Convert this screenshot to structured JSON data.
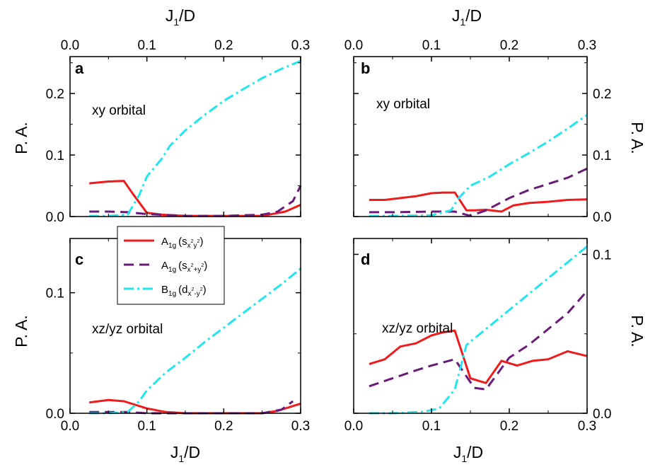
{
  "colors": {
    "a1g_sxy": "#ee1c1c",
    "a1g_sx2y2": "#6a1b78",
    "b1g_dx2y2": "#22e6ee",
    "axis": "#000000"
  },
  "shared": {
    "x_axis_title_main": "J",
    "x_axis_title_sub": "1",
    "x_axis_title_tail": "/D",
    "y_axis_title": "P. A."
  },
  "legend": {
    "items": [
      {
        "key": "a1g_sxy",
        "name": "A",
        "name_sub": "1g",
        "open": "(s",
        "func_sub": "x",
        "func_sup": "2",
        "func_sub2": "y",
        "func_sup2": "2",
        "close": ")"
      },
      {
        "key": "a1g_sx2y2",
        "name": "A",
        "name_sub": "1g",
        "open": "(s",
        "func_sub": "x",
        "func_sup": "2",
        "func_sub2": "+y",
        "func_sup2": "2",
        "close": ")"
      },
      {
        "key": "b1g_dx2y2",
        "name": "B",
        "name_sub": "1g",
        "open": "(d",
        "func_sub": "x",
        "func_sup": "2",
        "func_sub2": "-y",
        "func_sup2": "2",
        "close": ")"
      }
    ]
  },
  "chart_data": [
    {
      "panel": "a",
      "type": "line",
      "annotation": "xy orbital",
      "xlim": [
        0.0,
        0.3
      ],
      "ylim": [
        0.0,
        0.26
      ],
      "xticks": [
        "0.0",
        "0.1",
        "0.2",
        "0.3"
      ],
      "yticks": [
        {
          "value": 0.0,
          "label": "0.0"
        },
        {
          "value": 0.1,
          "label": "0.1"
        },
        {
          "value": 0.2,
          "label": "0.2"
        }
      ],
      "series": [
        {
          "key": "a1g_sxy",
          "name": "A1g (sxy)",
          "x": [
            0.025,
            0.05,
            0.07,
            0.08,
            0.1,
            0.12,
            0.15,
            0.2,
            0.25,
            0.28,
            0.3
          ],
          "y": [
            0.054,
            0.057,
            0.058,
            0.04,
            0.006,
            0.003,
            0.001,
            0.001,
            0.001,
            0.008,
            0.019
          ]
        },
        {
          "key": "a1g_sx2y2",
          "name": "A1g (sx2+y2)",
          "x": [
            0.025,
            0.05,
            0.075,
            0.1,
            0.15,
            0.2,
            0.25,
            0.27,
            0.29,
            0.3
          ],
          "y": [
            0.008,
            0.008,
            0.007,
            0.004,
            0.001,
            0.001,
            0.003,
            0.008,
            0.025,
            0.05
          ]
        },
        {
          "key": "b1g_dx2y2",
          "name": "B1g (dx2-y2)",
          "x": [
            0.025,
            0.05,
            0.075,
            0.09,
            0.1,
            0.12,
            0.13,
            0.15,
            0.175,
            0.2,
            0.225,
            0.25,
            0.275,
            0.3
          ],
          "y": [
            0.001,
            0.001,
            0.003,
            0.035,
            0.065,
            0.095,
            0.115,
            0.14,
            0.165,
            0.188,
            0.207,
            0.225,
            0.24,
            0.253
          ]
        }
      ]
    },
    {
      "panel": "b",
      "type": "line",
      "annotation": "xy orbital",
      "xlim": [
        0.0,
        0.3
      ],
      "ylim": [
        0.0,
        0.26
      ],
      "xticks": [
        "0.0",
        "0.1",
        "0.2",
        "0.3"
      ],
      "yticks": [
        {
          "value": 0.0,
          "label": "0.0"
        },
        {
          "value": 0.1,
          "label": "0.1"
        },
        {
          "value": 0.2,
          "label": "0.2"
        }
      ],
      "series": [
        {
          "key": "a1g_sxy",
          "name": "A1g (sxy)",
          "x": [
            0.02,
            0.04,
            0.06,
            0.08,
            0.1,
            0.115,
            0.13,
            0.145,
            0.155,
            0.17,
            0.19,
            0.205,
            0.225,
            0.25,
            0.275,
            0.3
          ],
          "y": [
            0.027,
            0.027,
            0.03,
            0.033,
            0.038,
            0.039,
            0.039,
            0.01,
            0.01,
            0.011,
            0.008,
            0.018,
            0.022,
            0.024,
            0.027,
            0.028
          ]
        },
        {
          "key": "a1g_sx2y2",
          "name": "A1g (sx2+y2)",
          "x": [
            0.02,
            0.05,
            0.1,
            0.13,
            0.15,
            0.17,
            0.2,
            0.225,
            0.25,
            0.275,
            0.3
          ],
          "y": [
            0.007,
            0.007,
            0.008,
            0.008,
            0.001,
            0.01,
            0.03,
            0.043,
            0.053,
            0.063,
            0.078
          ]
        },
        {
          "key": "b1g_dx2y2",
          "name": "B1g (dx2-y2)",
          "x": [
            0.02,
            0.05,
            0.1,
            0.125,
            0.135,
            0.15,
            0.175,
            0.2,
            0.225,
            0.25,
            0.275,
            0.3
          ],
          "y": [
            0.001,
            0.001,
            0.002,
            0.01,
            0.03,
            0.05,
            0.065,
            0.085,
            0.103,
            0.122,
            0.143,
            0.165
          ]
        }
      ]
    },
    {
      "panel": "c",
      "type": "line",
      "annotation": "xz/yz orbital",
      "xlim": [
        0.0,
        0.3
      ],
      "ylim": [
        0.0,
        0.145
      ],
      "xticks": [
        "0.0",
        "0.1",
        "0.2",
        "0.3"
      ],
      "yticks": [
        {
          "value": 0.0,
          "label": "0.0"
        },
        {
          "value": 0.1,
          "label": "0.1"
        }
      ],
      "series": [
        {
          "key": "a1g_sxy",
          "name": "A1g (sxy)",
          "x": [
            0.025,
            0.05,
            0.07,
            0.1,
            0.125,
            0.15,
            0.2,
            0.25,
            0.27,
            0.3
          ],
          "y": [
            0.009,
            0.011,
            0.01,
            0.004,
            0.001,
            0.0,
            0.0,
            0.0,
            0.002,
            0.008
          ]
        },
        {
          "key": "a1g_sx2y2",
          "name": "A1g (sx2+y2)",
          "x": [
            0.025,
            0.05,
            0.075,
            0.1,
            0.15,
            0.2,
            0.25,
            0.275,
            0.29
          ],
          "y": [
            0.001,
            0.001,
            0.001,
            0.0,
            0.0,
            0.0,
            0.0,
            0.003,
            0.01
          ]
        },
        {
          "key": "b1g_dx2y2",
          "name": "B1g (dx2-y2)",
          "x": [
            0.025,
            0.05,
            0.075,
            0.09,
            0.1,
            0.125,
            0.15,
            0.175,
            0.2,
            0.225,
            0.25,
            0.275,
            0.3
          ],
          "y": [
            0.0,
            0.0,
            0.001,
            0.01,
            0.019,
            0.034,
            0.046,
            0.059,
            0.071,
            0.083,
            0.095,
            0.107,
            0.12
          ]
        }
      ]
    },
    {
      "panel": "d",
      "type": "line",
      "annotation": "xz/yz orbital",
      "xlim": [
        0.0,
        0.3
      ],
      "ylim": [
        0.0,
        0.11
      ],
      "xticks": [
        "0.0",
        "0.1",
        "0.2",
        "0.3"
      ],
      "yticks": [
        {
          "value": 0.0,
          "label": "0.0"
        },
        {
          "value": 0.1,
          "label": "0.1"
        }
      ],
      "series": [
        {
          "key": "a1g_sxy",
          "name": "A1g (sxy)",
          "x": [
            0.02,
            0.04,
            0.06,
            0.08,
            0.1,
            0.115,
            0.13,
            0.15,
            0.17,
            0.19,
            0.21,
            0.23,
            0.25,
            0.275,
            0.3
          ],
          "y": [
            0.031,
            0.034,
            0.042,
            0.044,
            0.049,
            0.051,
            0.052,
            0.022,
            0.019,
            0.033,
            0.03,
            0.033,
            0.034,
            0.039,
            0.036
          ]
        },
        {
          "key": "a1g_sx2y2",
          "name": "A1g (sx2+y2)",
          "x": [
            0.02,
            0.05,
            0.08,
            0.1,
            0.13,
            0.155,
            0.17,
            0.2,
            0.225,
            0.25,
            0.275,
            0.3
          ],
          "y": [
            0.017,
            0.022,
            0.027,
            0.03,
            0.034,
            0.016,
            0.015,
            0.035,
            0.043,
            0.053,
            0.063,
            0.077
          ]
        },
        {
          "key": "b1g_dx2y2",
          "name": "B1g (dx2-y2)",
          "x": [
            0.02,
            0.05,
            0.09,
            0.11,
            0.13,
            0.145,
            0.175,
            0.2,
            0.225,
            0.25,
            0.275,
            0.3
          ],
          "y": [
            0.0,
            0.0,
            0.001,
            0.003,
            0.015,
            0.043,
            0.055,
            0.065,
            0.075,
            0.085,
            0.095,
            0.105
          ]
        }
      ]
    }
  ]
}
